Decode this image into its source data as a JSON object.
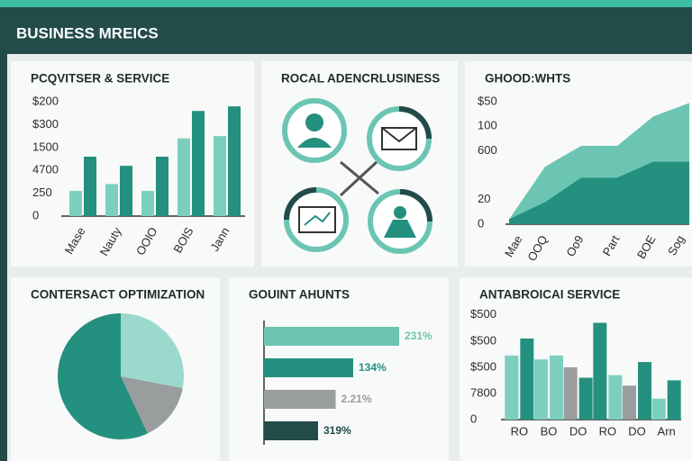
{
  "title": "BUSINESS MREICS",
  "chart_data": [
    {
      "type": "bar",
      "title": "PCQVITSER & SERVICE",
      "categories": [
        "Mase",
        "Nauty",
        "OOlO",
        "BOlS",
        "Jann"
      ],
      "series": [
        {
          "color": "#7ccfbf",
          "values": [
            1.1,
            1.4,
            1.1,
            3.4,
            3.5
          ]
        },
        {
          "color": "#24907f",
          "values": [
            2.6,
            2.2,
            2.6,
            4.6,
            4.8
          ]
        }
      ],
      "ylim": [
        0,
        5.2
      ],
      "yticks": [
        0,
        {
          "value": 1,
          "label": "250"
        },
        {
          "value": 2,
          "label": "4700"
        },
        {
          "value": 3,
          "label": "1500"
        },
        {
          "value": 4,
          "label": "$300"
        },
        {
          "value": 5,
          "label": "$200"
        }
      ]
    },
    {
      "type": "diagram",
      "title": "ROCAL ADENCRLUSINESS"
    },
    {
      "type": "area",
      "title": "GHOOD:WHTS",
      "categories": [
        "Mae",
        "OOQ",
        "Oo9",
        "Part",
        "BOE",
        "Sog"
      ],
      "series": [
        {
          "color": "#6cc5b3",
          "values": [
            0.2,
            2.35,
            3.2,
            3.2,
            4.4,
            4.95
          ]
        },
        {
          "color": "#24907f",
          "values": [
            0.2,
            0.9,
            1.9,
            1.9,
            2.55,
            2.55
          ]
        }
      ],
      "ylim": [
        0,
        5
      ],
      "yticks": [
        0,
        {
          "value": 1,
          "label": "20"
        },
        {
          "value": 3,
          "label": "600"
        },
        {
          "value": 4,
          "label": "100"
        },
        {
          "value": 5,
          "label": "$50"
        }
      ]
    },
    {
      "type": "pie",
      "title": "CONTERSACT OPTIMIZATION",
      "values": [
        28,
        15,
        57
      ],
      "colors": [
        "#9bd9cc",
        "#9a9d9d",
        "#24907f"
      ]
    },
    {
      "type": "hbar",
      "title": "GOUINT AHUNTS",
      "values": [
        100,
        66,
        53,
        40
      ],
      "colors": [
        "#6cc5b3",
        "#24907f",
        "#9a9d9d",
        "#234b4a"
      ],
      "annotations": [
        "231%",
        "134%",
        "2.21%",
        "319%"
      ]
    },
    {
      "type": "bar",
      "title": "ANTABROICAI SERVICE",
      "categories": [
        "RO",
        "BO",
        "DO",
        "RO",
        "DO",
        "Arn"
      ],
      "series": [
        {
          "colors": [
            "#7ccfbf",
            "#7ccfbf",
            "#9a9d9d",
            "#24907f",
            "#9a9d9d",
            "#7ccfbf"
          ],
          "values": [
            2.45,
            2.3,
            2.0,
            3.7,
            1.3,
            0.8
          ]
        },
        {
          "colors": [
            "#24907f",
            "#7ccfbf",
            "#24907f",
            "#7ccfbf",
            "#24907f",
            "#24907f"
          ],
          "values": [
            3.1,
            2.45,
            1.6,
            1.7,
            2.2,
            1.5
          ]
        }
      ],
      "ylim": [
        0,
        4.2
      ],
      "yticks": [
        0,
        {
          "value": 1,
          "label": "7800"
        },
        {
          "value": 2,
          "label": "$500"
        },
        {
          "value": 3,
          "label": "$500"
        },
        {
          "value": 4,
          "label": "$500"
        }
      ]
    }
  ]
}
